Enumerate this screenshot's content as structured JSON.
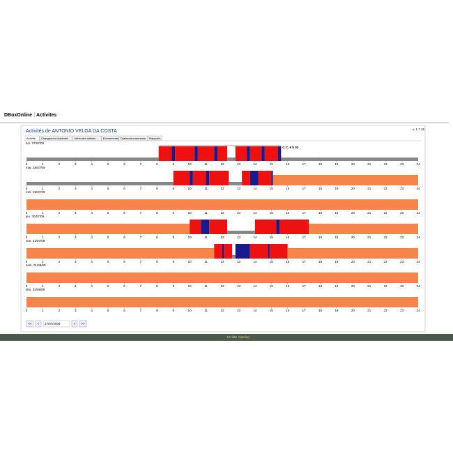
{
  "header": {
    "title": "DBoxOnline : Activites",
    "version": "v. 1.7.15"
  },
  "panel": {
    "title": "Activités de ANTONIO VELGA DA COSTA",
    "tabs": [
      "Activité",
      "Chargement d'activité",
      "Véhicules utilisés",
      "Evénements",
      "Dysfonctionnements",
      "Rapports"
    ]
  },
  "timeline": {
    "xlim": [
      0,
      24
    ],
    "hours": [
      0,
      1,
      2,
      3,
      4,
      5,
      6,
      7,
      8,
      9,
      10,
      11,
      12,
      13,
      14,
      15,
      16,
      17,
      18,
      19,
      20,
      21,
      22,
      23,
      24
    ]
  },
  "days": [
    {
      "label": "lun. 27/07/09",
      "annotation": "C.C. 6 h 03",
      "segments": [
        {
          "start": 0,
          "end": 8.1,
          "color": "#888888"
        },
        {
          "start": 8.1,
          "end": 8.9,
          "color": "#ee1111"
        },
        {
          "start": 8.9,
          "end": 9.1,
          "color": "#1a1a8c"
        },
        {
          "start": 9.1,
          "end": 10.3,
          "color": "#ee1111"
        },
        {
          "start": 10.3,
          "end": 10.5,
          "color": "#1a1a8c"
        },
        {
          "start": 10.5,
          "end": 11.5,
          "color": "#ee1111"
        },
        {
          "start": 11.5,
          "end": 11.7,
          "color": "#1a1a8c"
        },
        {
          "start": 11.7,
          "end": 12.3,
          "color": "#ee1111"
        },
        {
          "start": 12.3,
          "end": 12.8,
          "color": "#888888"
        },
        {
          "start": 12.8,
          "end": 13.5,
          "color": "#ee1111"
        },
        {
          "start": 13.5,
          "end": 13.7,
          "color": "#1a1a8c"
        },
        {
          "start": 13.7,
          "end": 14.4,
          "color": "#ee1111"
        },
        {
          "start": 14.4,
          "end": 14.6,
          "color": "#1a1a8c"
        },
        {
          "start": 14.6,
          "end": 15.4,
          "color": "#ee1111"
        },
        {
          "start": 15.4,
          "end": 15.6,
          "color": "#1a1a8c"
        },
        {
          "start": 15.6,
          "end": 24,
          "color": "#888888"
        }
      ]
    },
    {
      "label": "mar. 28/07/09",
      "segments": [
        {
          "start": 0,
          "end": 9,
          "color": "#888888"
        },
        {
          "start": 9,
          "end": 10,
          "color": "#ee1111"
        },
        {
          "start": 10,
          "end": 10.2,
          "color": "#1a1a8c"
        },
        {
          "start": 10.2,
          "end": 11,
          "color": "#ee1111"
        },
        {
          "start": 11,
          "end": 11.2,
          "color": "#1a1a8c"
        },
        {
          "start": 11.2,
          "end": 12.4,
          "color": "#ee1111"
        },
        {
          "start": 12.4,
          "end": 13.2,
          "color": "#888888"
        },
        {
          "start": 13.2,
          "end": 13.7,
          "color": "#ee1111"
        },
        {
          "start": 13.7,
          "end": 14.2,
          "color": "#1a1a8c"
        },
        {
          "start": 14.2,
          "end": 15,
          "color": "#ee1111"
        },
        {
          "start": 15,
          "end": 15.1,
          "color": "#1a1a8c"
        },
        {
          "start": 15.1,
          "end": 24,
          "color": "#f7844a"
        }
      ]
    },
    {
      "label": "mer. 29/07/09",
      "segments": [
        {
          "start": 0,
          "end": 24,
          "color": "#f7844a"
        }
      ]
    },
    {
      "label": "jeu. 30/07/09",
      "segments": [
        {
          "start": 0,
          "end": 10,
          "color": "#f7844a"
        },
        {
          "start": 10,
          "end": 10.7,
          "color": "#ee1111"
        },
        {
          "start": 10.7,
          "end": 11.2,
          "color": "#1a1a8c"
        },
        {
          "start": 11.2,
          "end": 12.3,
          "color": "#ee1111"
        },
        {
          "start": 12.3,
          "end": 14,
          "color": "#888888"
        },
        {
          "start": 14,
          "end": 15.3,
          "color": "#ee1111"
        },
        {
          "start": 15.3,
          "end": 15.5,
          "color": "#1a1a8c"
        },
        {
          "start": 15.5,
          "end": 17.3,
          "color": "#ee1111"
        },
        {
          "start": 17.3,
          "end": 24,
          "color": "#f7844a"
        }
      ]
    },
    {
      "label": "ven. 31/07/09",
      "segments": [
        {
          "start": 0,
          "end": 11.5,
          "color": "#f7844a"
        },
        {
          "start": 11.5,
          "end": 12,
          "color": "#ee1111"
        },
        {
          "start": 12,
          "end": 12.1,
          "color": "#1a1a8c"
        },
        {
          "start": 12.1,
          "end": 12.6,
          "color": "#ee1111"
        },
        {
          "start": 12.6,
          "end": 12.8,
          "color": "#888888"
        },
        {
          "start": 12.8,
          "end": 13.7,
          "color": "#1a1a8c"
        },
        {
          "start": 13.7,
          "end": 14.8,
          "color": "#ee1111"
        },
        {
          "start": 14.8,
          "end": 14.9,
          "color": "#1a1a8c"
        },
        {
          "start": 14.9,
          "end": 16,
          "color": "#ee1111"
        },
        {
          "start": 16,
          "end": 24,
          "color": "#f7844a"
        }
      ]
    },
    {
      "label": "sam. 01/08/09",
      "segments": [
        {
          "start": 0,
          "end": 24,
          "color": "#f7844a"
        }
      ]
    },
    {
      "label": "dim. 02/08/09",
      "segments": [
        {
          "start": 0,
          "end": 24,
          "color": "#f7844a"
        }
      ]
    }
  ],
  "pager": {
    "first": "<<",
    "prev": "<",
    "date": "27/07/2009",
    "next": ">",
    "last": ">>"
  },
  "footer": {
    "text": "Un site",
    "brand": "Optalog"
  }
}
